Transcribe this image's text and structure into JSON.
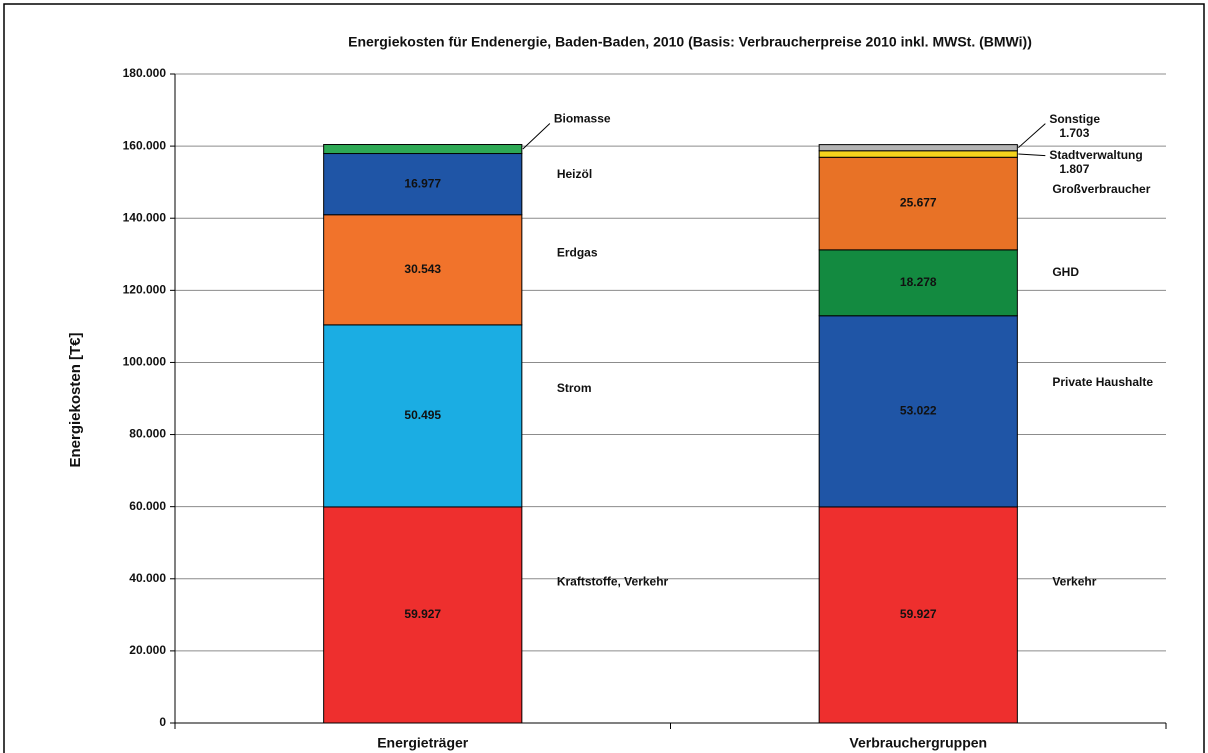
{
  "chart_data": {
    "type": "stacked_bar",
    "title": "Energiekosten für Endenergie, Baden-Baden, 2010  (Basis: Verbraucherpreise 2010 inkl. MWSt. (BMWi))",
    "y_label": "Energiekosten [T€]",
    "categories": [
      "Energieträger",
      "Verbrauchergruppen"
    ],
    "ylim": [
      0,
      180000
    ],
    "yticks": [
      0,
      {
        "value": 20000,
        "label": "20.000"
      },
      {
        "value": 40000,
        "label": "40.000"
      },
      {
        "value": 60000,
        "label": "60.000"
      },
      {
        "value": 80000,
        "label": "80.000"
      },
      {
        "value": 100000,
        "label": "100.000"
      },
      {
        "value": 120000,
        "label": "120.000"
      },
      {
        "value": 140000,
        "label": "140.000"
      },
      {
        "value": 160000,
        "label": "160.000"
      },
      {
        "value": 180000,
        "label": "180.000"
      }
    ],
    "grid": true,
    "series": [
      {
        "name": "Kraftstoffe, Verkehr",
        "color": "#ee2f2e",
        "values": [
          59927,
          null
        ],
        "value_labels": [
          "59.927",
          null
        ]
      },
      {
        "name": "Verkehr",
        "color": "#ee2f2e",
        "values": [
          null,
          59927
        ],
        "value_labels": [
          null,
          "59.927"
        ]
      },
      {
        "name": "Strom",
        "color": "#1badE3",
        "values": [
          50495,
          null
        ],
        "value_labels": [
          "50.495",
          null
        ]
      },
      {
        "name": "Private Haushalte",
        "color": "#1f55a6",
        "values": [
          null,
          53022
        ],
        "value_labels": [
          null,
          "53.022"
        ]
      },
      {
        "name": "Erdgas",
        "color": "#f1732b",
        "values": [
          30543,
          null
        ],
        "value_labels": [
          "30.543",
          null
        ]
      },
      {
        "name": "GHD",
        "color": "#138a40",
        "values": [
          null,
          18278
        ],
        "value_labels": [
          null,
          "18.278"
        ]
      },
      {
        "name": "Heizöl",
        "color": "#1f55a6",
        "values": [
          16977,
          null
        ],
        "value_labels": [
          "16.977",
          null
        ]
      },
      {
        "name": "Großverbraucher",
        "color": "#e87226",
        "values": [
          null,
          25677
        ],
        "value_labels": [
          null,
          "25.677"
        ]
      },
      {
        "name": "Biomasse",
        "color": "#2ea955",
        "values": [
          2500,
          null
        ],
        "value_labels": [
          null,
          null
        ]
      },
      {
        "name": "Stadtverwaltung",
        "color": "#f4d31d",
        "values": [
          null,
          1807
        ],
        "value_labels": [
          null,
          "1.807"
        ]
      },
      {
        "name": "Sonstige",
        "color": "#b4b4b4",
        "values": [
          null,
          1703
        ],
        "value_labels": [
          null,
          "1.703"
        ]
      }
    ]
  }
}
